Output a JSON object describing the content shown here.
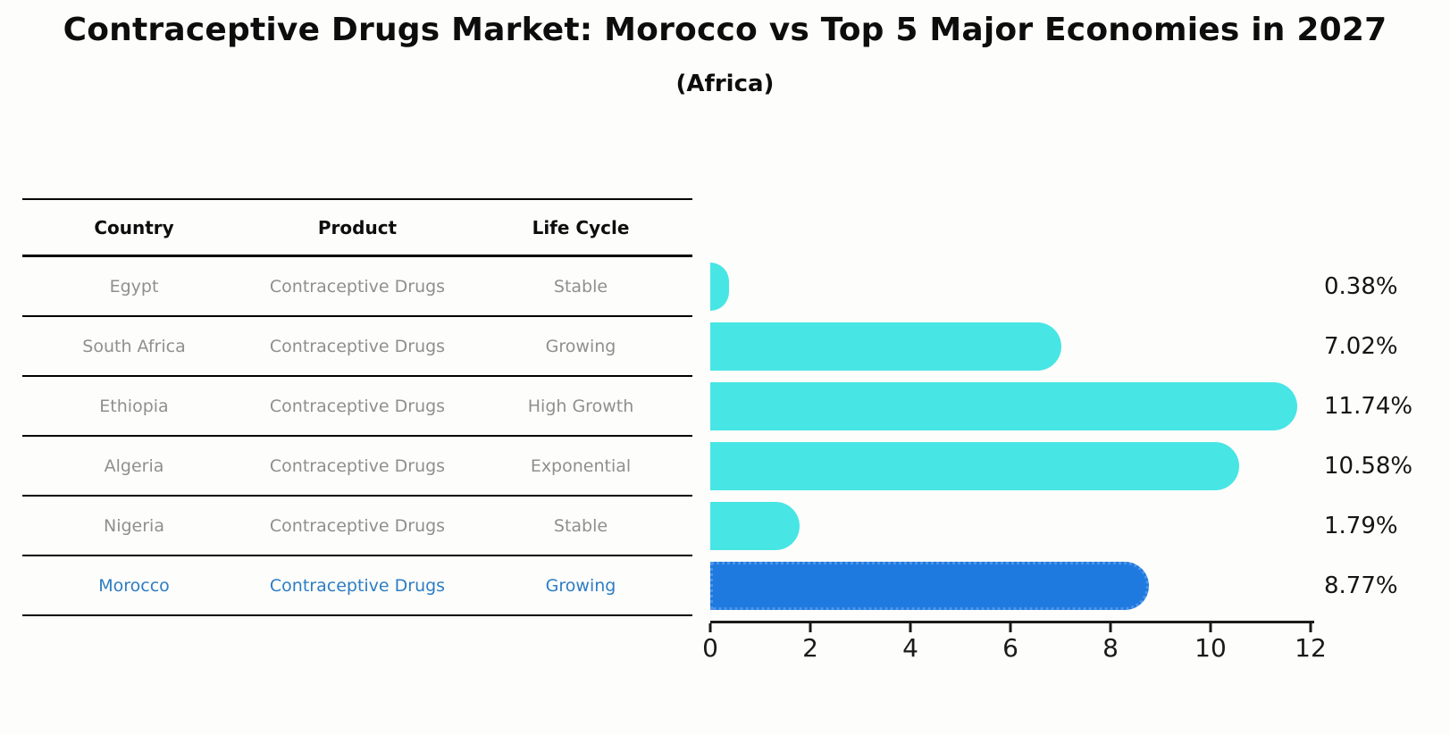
{
  "title": "Contraceptive Drugs Market: Morocco vs Top 5 Major Economies in 2027",
  "subtitle": "(Africa)",
  "colors": {
    "bar_default": "#48e5e5",
    "bar_highlight": "#1f7ae0",
    "bar_highlight_border": "#4c95ea",
    "highlight_text": "#2d7dc5",
    "table_text": "#8f8f8f",
    "axis": "#1a1a1a"
  },
  "table": {
    "headers": [
      "Country",
      "Product",
      "Life Cycle"
    ],
    "rows": [
      {
        "country": "Egypt",
        "product": "Contraceptive Drugs",
        "life_cycle": "Stable",
        "highlight": false
      },
      {
        "country": "South Africa",
        "product": "Contraceptive Drugs",
        "life_cycle": "Growing",
        "highlight": false
      },
      {
        "country": "Ethiopia",
        "product": "Contraceptive Drugs",
        "life_cycle": "High Growth",
        "highlight": false
      },
      {
        "country": "Algeria",
        "product": "Contraceptive Drugs",
        "life_cycle": "Exponential",
        "highlight": false
      },
      {
        "country": "Nigeria",
        "product": "Contraceptive Drugs",
        "life_cycle": "Stable",
        "highlight": false
      },
      {
        "country": "Morocco",
        "product": "Contraceptive Drugs",
        "life_cycle": "Growing",
        "highlight": true
      }
    ]
  },
  "chart_data": {
    "type": "bar",
    "orientation": "horizontal",
    "title": "Contraceptive Drugs Market: Morocco vs Top 5 Major Economies in 2027",
    "subtitle": "(Africa)",
    "categories": [
      "Egypt",
      "South Africa",
      "Ethiopia",
      "Algeria",
      "Nigeria",
      "Morocco"
    ],
    "values": [
      0.38,
      7.02,
      11.74,
      10.58,
      1.79,
      8.77
    ],
    "labels": [
      "0.38%",
      "7.02%",
      "11.74%",
      "10.58%",
      "1.79%",
      "8.77%"
    ],
    "highlight_index": 5,
    "xlabel": "",
    "ylabel": "",
    "xlim": [
      0,
      12
    ],
    "xticks": [
      0,
      2,
      4,
      6,
      8,
      10,
      12
    ],
    "grid": false,
    "legend": false
  }
}
